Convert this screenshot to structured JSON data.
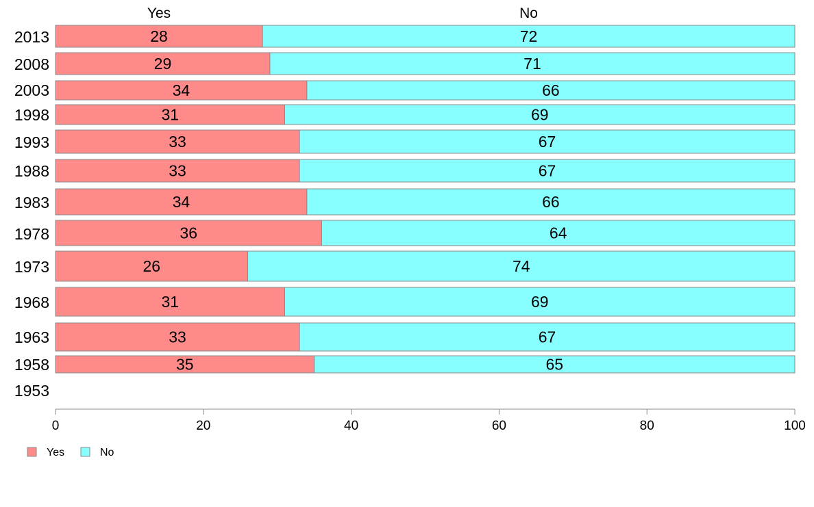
{
  "chart_data": {
    "type": "bar",
    "orientation": "horizontal",
    "stacked": true,
    "categories": [
      "2013",
      "2008",
      "2003",
      "1998",
      "1993",
      "1988",
      "1983",
      "1978",
      "1973",
      "1968",
      "1963",
      "1958",
      "1953"
    ],
    "series": [
      {
        "name": "Yes",
        "color": "#FF8A8A",
        "values": [
          28,
          29,
          34,
          31,
          33,
          33,
          34,
          36,
          26,
          31,
          33,
          35,
          null
        ],
        "labels": [
          "28",
          "29",
          "34",
          "31",
          "33",
          "33",
          "34",
          "36",
          "26",
          "31",
          "33",
          "35",
          ""
        ]
      },
      {
        "name": "No",
        "color": "#88FFFF",
        "values": [
          72,
          71,
          66,
          69,
          67,
          67,
          66,
          64,
          74,
          69,
          67,
          65,
          null
        ],
        "labels": [
          "72",
          "71",
          "66",
          "69",
          "67",
          "67",
          "66",
          "64",
          "74",
          "69",
          "67",
          "65",
          ""
        ]
      }
    ],
    "column_headers": [
      "Yes",
      "No"
    ],
    "xlim": [
      0,
      100
    ],
    "x_ticks": [
      "0",
      "20",
      "40",
      "60",
      "80",
      "100"
    ],
    "grid": false,
    "legend_position": "bottom-left",
    "legend": [
      "Yes",
      "No"
    ],
    "title": "",
    "xlabel": "",
    "ylabel": ""
  }
}
